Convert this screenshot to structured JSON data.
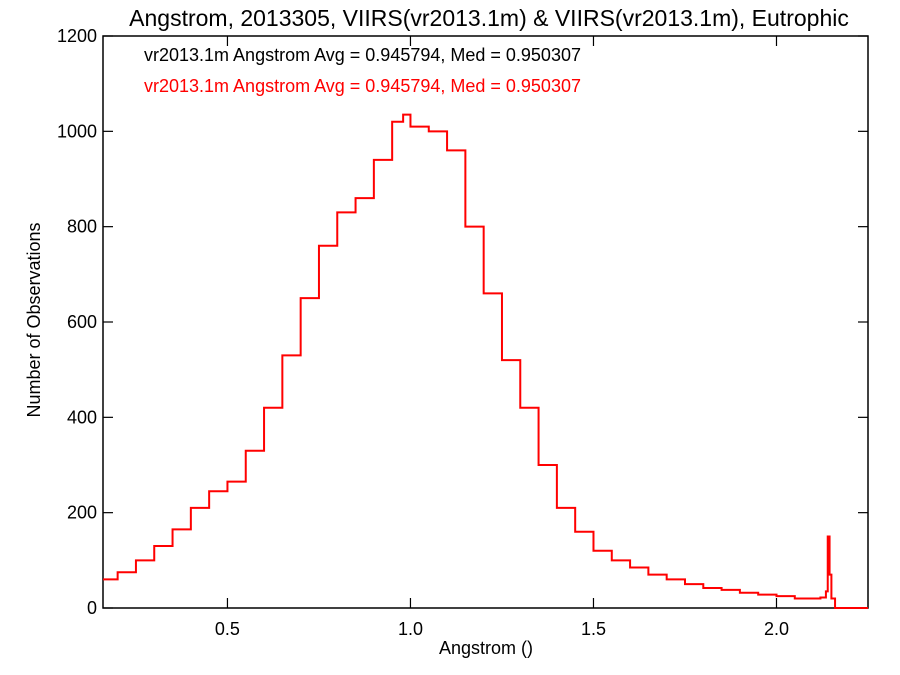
{
  "chart_data": {
    "type": "line",
    "title": "Angstrom, 2013305, VIIRS(vr2013.1m) & VIIRS(vr2013.1m), Eutrophic",
    "xlabel": "Angstrom ()",
    "ylabel": "Number of Observations",
    "xlim": [
      0.16,
      2.25
    ],
    "ylim": [
      0,
      1200
    ],
    "x_ticks": [
      0.5,
      1.0,
      1.5,
      2.0
    ],
    "x_tick_labels": [
      "0.5",
      "1.0",
      "1.5",
      "2.0"
    ],
    "y_ticks": [
      0,
      200,
      400,
      600,
      800,
      1000,
      1200
    ],
    "y_tick_labels": [
      "0",
      "200",
      "400",
      "600",
      "800",
      "1000",
      "1200"
    ],
    "legend": [
      {
        "text": "vr2013.1m Angstrom Avg = 0.945794, Med = 0.950307",
        "color": "#000000"
      },
      {
        "text": "vr2013.1m Angstrom Avg = 0.945794, Med = 0.950307",
        "color": "#ff0000"
      }
    ],
    "legend_position": "top-left",
    "series": [
      {
        "color": "#ff0000",
        "style": "step",
        "x": [
          0.16,
          0.2,
          0.25,
          0.3,
          0.35,
          0.4,
          0.45,
          0.5,
          0.55,
          0.6,
          0.65,
          0.7,
          0.75,
          0.8,
          0.85,
          0.9,
          0.95,
          0.98,
          1.0,
          1.05,
          1.1,
          1.15,
          1.2,
          1.25,
          1.3,
          1.35,
          1.4,
          1.45,
          1.5,
          1.55,
          1.6,
          1.65,
          1.7,
          1.75,
          1.8,
          1.85,
          1.9,
          1.95,
          2.0,
          2.05,
          2.1,
          2.12,
          2.135,
          2.14,
          2.145,
          2.15,
          2.16,
          2.2,
          2.25
        ],
        "y": [
          60,
          75,
          100,
          130,
          165,
          210,
          245,
          265,
          330,
          420,
          530,
          650,
          760,
          830,
          860,
          940,
          1020,
          1035,
          1010,
          1000,
          960,
          800,
          660,
          520,
          420,
          300,
          210,
          160,
          120,
          100,
          85,
          70,
          60,
          50,
          42,
          38,
          32,
          28,
          25,
          20,
          20,
          22,
          35,
          150,
          70,
          20,
          0,
          0,
          0
        ]
      }
    ]
  }
}
